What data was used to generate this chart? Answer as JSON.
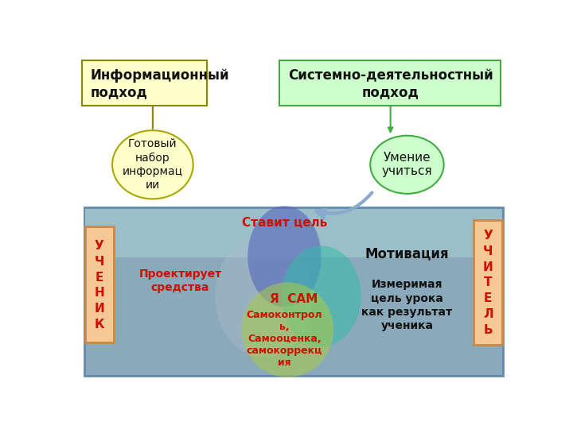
{
  "bg_color": "#ffffff",
  "box_info_text": "Информационный\nподход",
  "box_info_color": "#ffffcc",
  "box_info_border": "#888800",
  "box_sys_text": "Системно-деятельностный\nподход",
  "box_sys_color": "#ccffcc",
  "box_sys_border": "#44aa44",
  "circle_info_text": "Готовый\nнабор\nинформац\nии",
  "circle_info_color": "#ffffcc",
  "circle_info_border": "#aaa800",
  "circle_sys_text": "Умение\nучиться",
  "circle_sys_color": "#ccffcc",
  "circle_sys_border": "#44aa44",
  "panel_color": "#8aaabb",
  "panel_edge": "#6688aa",
  "side_box_color": "#f5c896",
  "side_box_border": "#cc8844",
  "venn_blue_color": "#5566bb",
  "venn_green_color": "#aacc44",
  "venn_teal_color": "#33bbaa",
  "venn_gray_color": "#aabbcc",
  "venn_center_text": "Я  САМ",
  "stavit_text": "Ставит цель",
  "proekt_text": "Проектирует\nсредства",
  "samokontrol_text": "Самоконтрол\nь,\nСамооценка,\nсамокоррекц\nия",
  "motivaciya_text": "Мотивация",
  "izmer_text": "Измеримая\nцель урока\nкак результат\nученика",
  "ученик_text": "У\nЧ\nЕ\nН\nИ\nК",
  "учитель_text": "У\nЧ\nИ\nТ\nЕ\nЛ\nЬ",
  "red_color": "#cc1100",
  "black_color": "#111111"
}
